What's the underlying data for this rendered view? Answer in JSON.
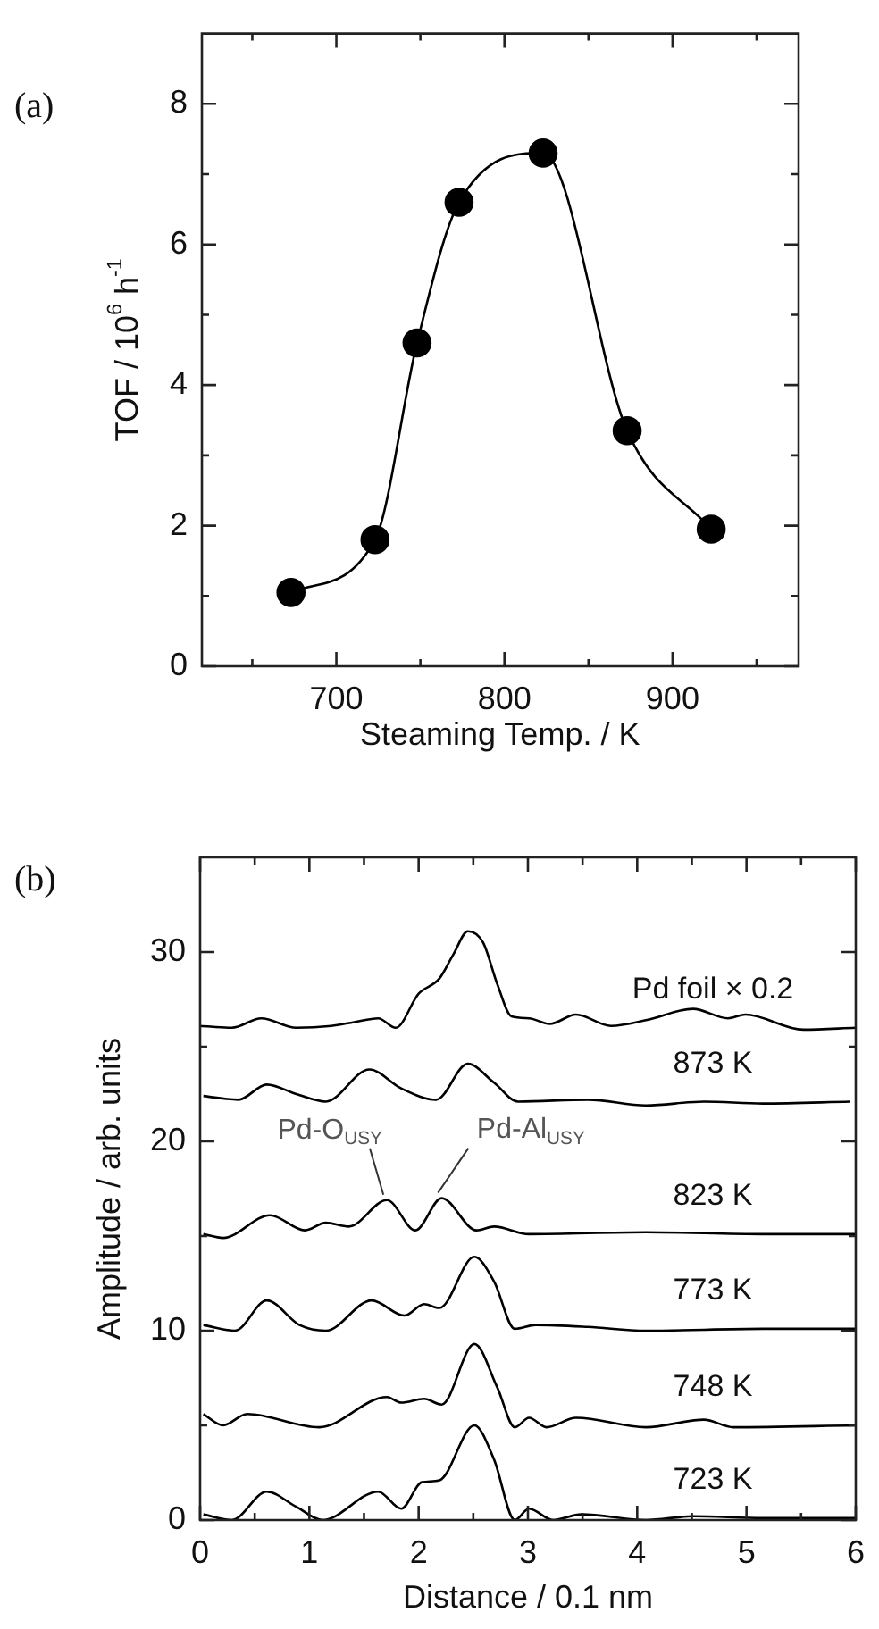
{
  "chart_data": [
    {
      "type": "line",
      "title": "(a)",
      "xlabel": "Steaming Temp. / K",
      "ylabel": "TOF / 10$^{6}$ h$^{-1}$",
      "x": [
        673,
        723,
        748,
        773,
        823,
        873,
        923
      ],
      "series": [
        {
          "color": "#000000",
          "values": [
            1.05,
            1.8,
            4.6,
            6.6,
            7.3,
            3.35,
            1.95
          ]
        }
      ],
      "xlim": [
        620,
        975
      ],
      "xticks": [
        {
          "value": 650,
          "label": null
        },
        700,
        {
          "value": 750,
          "label": null
        },
        800,
        {
          "value": 850,
          "label": null
        },
        900,
        {
          "value": 950,
          "label": null
        }
      ],
      "ylim": [
        0,
        9
      ],
      "yticks": [
        0,
        {
          "value": 1,
          "label": null
        },
        2,
        {
          "value": 3,
          "label": null
        },
        4,
        {
          "value": 5,
          "label": null
        },
        6,
        {
          "value": 7,
          "label": null
        },
        8
      ],
      "marker": "circle",
      "line_style": "solid",
      "grid": false,
      "legend": false
    },
    {
      "type": "line",
      "title": "(b)",
      "xlabel": "Distance / 0.1 nm",
      "ylabel": "Amplitude / arb. units",
      "series": [
        {
          "name": "Pd foil × 0.2",
          "color": "#000000",
          "x": [
            0,
            0.29,
            0.56,
            0.88,
            1.2,
            1.41,
            1.63,
            1.79,
            2.0,
            2.19,
            2.32,
            2.45,
            2.59,
            2.72,
            2.85,
            3.01,
            3.2,
            3.44,
            3.76,
            4.08,
            4.51,
            4.83,
            4.99,
            5.52,
            6.0
          ],
          "values": [
            26.1,
            26.0,
            26.5,
            26.0,
            26.1,
            26.3,
            26.5,
            26.0,
            27.8,
            28.6,
            29.9,
            31.1,
            30.5,
            28.3,
            26.6,
            26.5,
            26.2,
            26.7,
            26.1,
            26.4,
            27.0,
            26.5,
            26.7,
            25.9,
            26.0
          ]
        },
        {
          "name": "873 K",
          "color": "#000000",
          "x": [
            0.03,
            0.35,
            0.61,
            0.88,
            1.15,
            1.55,
            1.84,
            2.16,
            2.45,
            2.69,
            2.91,
            3.55,
            4.08,
            4.61,
            5.15,
            5.95
          ],
          "values": [
            22.4,
            22.2,
            23.0,
            22.5,
            22.1,
            23.8,
            22.8,
            22.2,
            24.1,
            23.1,
            22.1,
            22.2,
            21.9,
            22.1,
            22.0,
            22.1
          ]
        },
        {
          "name": "823 K",
          "color": "#000000",
          "x": [
            0.03,
            0.21,
            0.64,
            0.96,
            1.15,
            1.36,
            1.71,
            1.97,
            2.21,
            2.53,
            2.69,
            3.01,
            4.08,
            5.15,
            6.0
          ],
          "values": [
            15.1,
            14.9,
            16.1,
            15.3,
            15.7,
            15.5,
            16.9,
            15.3,
            17.0,
            15.3,
            15.5,
            15.1,
            15.2,
            15.1,
            15.1
          ]
        },
        {
          "name": "773 K",
          "color": "#000000",
          "x": [
            0.03,
            0.32,
            0.61,
            0.91,
            1.15,
            1.57,
            1.87,
            2.05,
            2.19,
            2.51,
            2.69,
            2.88,
            3.07,
            3.55,
            4.08,
            5.15,
            6.0
          ],
          "values": [
            10.3,
            10.0,
            11.6,
            10.3,
            10.0,
            11.6,
            10.8,
            11.4,
            11.2,
            13.9,
            12.6,
            10.1,
            10.3,
            10.2,
            10.0,
            10.1,
            10.1
          ]
        },
        {
          "name": "748 K",
          "color": "#000000",
          "x": [
            0.03,
            0.21,
            0.43,
            1.09,
            1.71,
            1.84,
            2.05,
            2.21,
            2.51,
            2.72,
            2.88,
            3.01,
            3.17,
            3.44,
            4.08,
            4.61,
            4.88,
            6.0
          ],
          "values": [
            5.6,
            5.0,
            5.6,
            4.9,
            6.5,
            6.2,
            6.4,
            6.1,
            9.3,
            7.0,
            4.9,
            5.4,
            4.9,
            5.4,
            4.9,
            5.3,
            4.9,
            5.0
          ]
        },
        {
          "name": "723 K",
          "color": "#000000",
          "x": [
            0.03,
            0.29,
            0.61,
            0.88,
            1.12,
            1.63,
            1.84,
            2.03,
            2.19,
            2.51,
            2.69,
            2.88,
            3.01,
            3.23,
            3.49,
            4.08,
            4.51,
            5.15,
            6.0
          ],
          "values": [
            0.3,
            0,
            1.5,
            0.7,
            0,
            1.5,
            0.6,
            2.0,
            2.1,
            5.0,
            3.2,
            0,
            0.6,
            0,
            0.3,
            0,
            0.2,
            0.1,
            0.1
          ]
        }
      ],
      "annotations": [
        {
          "text": "Pd-O$_{USY}$",
          "x": 1.71,
          "y": 16.9
        },
        {
          "text": "Pd-Al$_{USY}$",
          "x": 2.21,
          "y": 17.0
        }
      ],
      "xlim": [
        0,
        6
      ],
      "xticks": [
        0,
        {
          "value": 0.5,
          "label": null
        },
        1,
        {
          "value": 1.5,
          "label": null
        },
        2,
        {
          "value": 2.5,
          "label": null
        },
        3,
        {
          "value": 3.5,
          "label": null
        },
        4,
        {
          "value": 4.5,
          "label": null
        },
        5,
        {
          "value": 5.5,
          "label": null
        },
        6
      ],
      "ylim": [
        0,
        35
      ],
      "yticks": [
        0,
        {
          "value": 5,
          "label": null
        },
        10,
        {
          "value": 15,
          "label": null
        },
        20,
        {
          "value": 25,
          "label": null
        },
        30
      ],
      "marker": "none",
      "line_style": "solid",
      "grid": false,
      "legend": false
    }
  ]
}
